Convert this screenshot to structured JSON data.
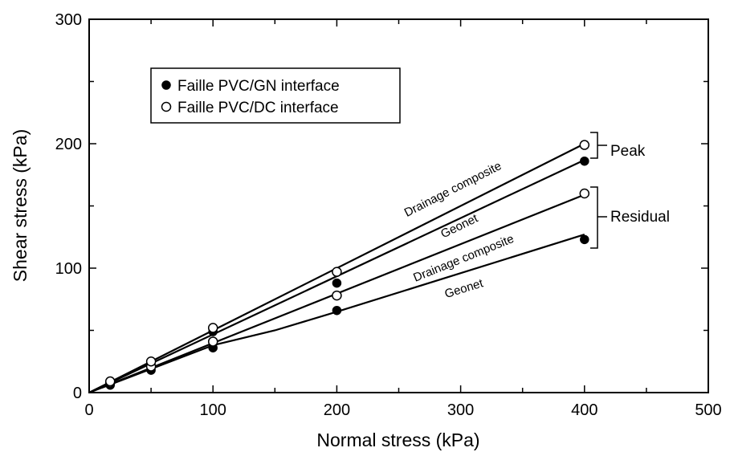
{
  "chart_data": {
    "type": "scatter",
    "title": "",
    "xlabel": "Normal stress (kPa)",
    "ylabel": "Shear stress (kPa)",
    "xlim": [
      0,
      500
    ],
    "ylim": [
      0,
      300
    ],
    "x_ticks": [
      0,
      100,
      200,
      300,
      400,
      500
    ],
    "y_ticks": [
      0,
      100,
      200,
      300
    ],
    "x_tick_labels": [
      "0",
      "100",
      "200",
      "300",
      "400",
      "500"
    ],
    "y_tick_labels": [
      "0",
      "100",
      "200",
      "300"
    ],
    "grid": false,
    "legend_position": "top-left",
    "legend": [
      "Faille PVC/GN interface",
      "Faille PVC/DC interface"
    ],
    "series": [
      {
        "name": "Faille PVC/GN interface",
        "marker": "filled-circle",
        "color": "#000000",
        "points": [
          {
            "x": 17,
            "y": 6
          },
          {
            "x": 17,
            "y": 7
          },
          {
            "x": 50,
            "y": 18
          },
          {
            "x": 50,
            "y": 24
          },
          {
            "x": 100,
            "y": 36
          },
          {
            "x": 100,
            "y": 49
          },
          {
            "x": 200,
            "y": 66
          },
          {
            "x": 200,
            "y": 88
          },
          {
            "x": 400,
            "y": 123
          },
          {
            "x": 400,
            "y": 186
          }
        ]
      },
      {
        "name": "Faille PVC/DC interface",
        "marker": "open-circle",
        "color": "#000000",
        "points": [
          {
            "x": 17,
            "y": 8
          },
          {
            "x": 17,
            "y": 9
          },
          {
            "x": 50,
            "y": 21
          },
          {
            "x": 50,
            "y": 25
          },
          {
            "x": 100,
            "y": 41
          },
          {
            "x": 100,
            "y": 52
          },
          {
            "x": 200,
            "y": 78
          },
          {
            "x": 200,
            "y": 97
          },
          {
            "x": 400,
            "y": 160
          },
          {
            "x": 400,
            "y": 199
          }
        ]
      }
    ],
    "fit_lines": [
      {
        "label": "Drainage composite",
        "group": "Peak",
        "from": [
          0,
          0
        ],
        "to": [
          400,
          200
        ]
      },
      {
        "label": "Geonet",
        "group": "Peak",
        "from": [
          0,
          0
        ],
        "to": [
          400,
          187
        ]
      },
      {
        "label": "Drainage composite",
        "group": "Residual",
        "from": [
          0,
          0
        ],
        "to": [
          400,
          159
        ]
      },
      {
        "label": "Geonet",
        "group": "Residual",
        "points": [
          [
            0,
            0
          ],
          [
            100,
            38
          ],
          [
            150,
            50
          ],
          [
            200,
            65
          ],
          [
            400,
            127
          ]
        ]
      }
    ],
    "group_labels": [
      "Peak",
      "Residual"
    ]
  }
}
